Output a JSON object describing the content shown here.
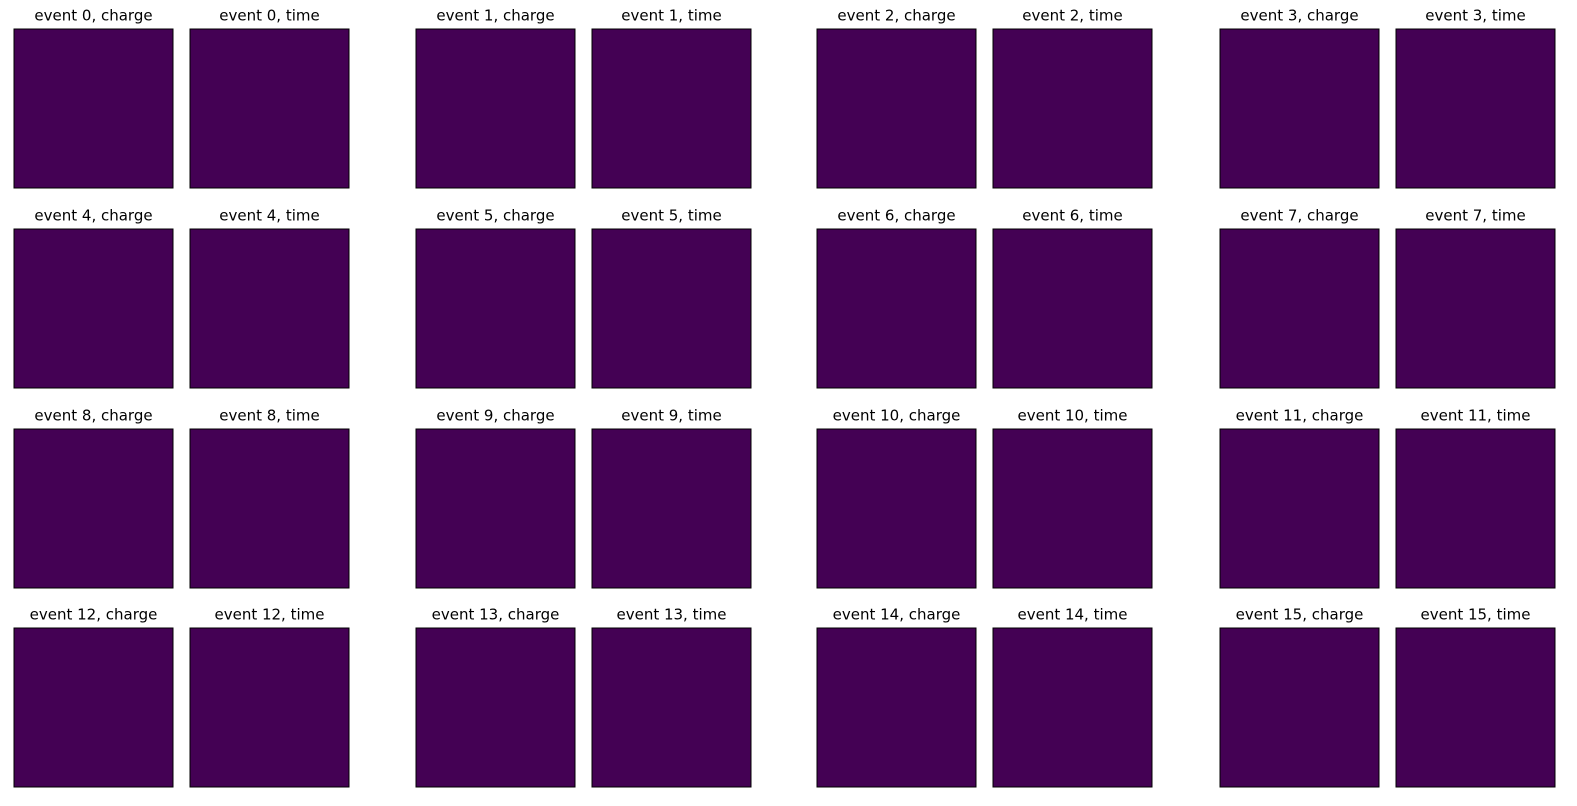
{
  "chart_data": [
    {
      "type": "image",
      "title": "event 0, charge"
    },
    {
      "type": "image",
      "title": "event 0, time"
    },
    {
      "type": "image",
      "title": "event 1, charge"
    },
    {
      "type": "image",
      "title": "event 1, time"
    },
    {
      "type": "image",
      "title": "event 2, charge"
    },
    {
      "type": "image",
      "title": "event 2, time"
    },
    {
      "type": "image",
      "title": "event 3, charge"
    },
    {
      "type": "image",
      "title": "event 3, time"
    },
    {
      "type": "image",
      "title": "event 4, charge"
    },
    {
      "type": "image",
      "title": "event 4, time"
    },
    {
      "type": "image",
      "title": "event 5, charge"
    },
    {
      "type": "image",
      "title": "event 5, time"
    },
    {
      "type": "image",
      "title": "event 6, charge"
    },
    {
      "type": "image",
      "title": "event 6, time"
    },
    {
      "type": "image",
      "title": "event 7, charge"
    },
    {
      "type": "image",
      "title": "event 7, time"
    },
    {
      "type": "image",
      "title": "event 8, charge"
    },
    {
      "type": "image",
      "title": "event 8, time"
    },
    {
      "type": "image",
      "title": "event 9, charge"
    },
    {
      "type": "image",
      "title": "event 9, time"
    },
    {
      "type": "image",
      "title": "event 10, charge"
    },
    {
      "type": "image",
      "title": "event 10, time"
    },
    {
      "type": "image",
      "title": "event 11, charge"
    },
    {
      "type": "image",
      "title": "event 11, time"
    },
    {
      "type": "image",
      "title": "event 12, charge"
    },
    {
      "type": "image",
      "title": "event 12, time"
    },
    {
      "type": "image",
      "title": "event 13, charge"
    },
    {
      "type": "image",
      "title": "event 13, time"
    },
    {
      "type": "image",
      "title": "event 14, charge"
    },
    {
      "type": "image",
      "title": "event 14, time"
    },
    {
      "type": "image",
      "title": "event 15, charge"
    },
    {
      "type": "image",
      "title": "event 15, time"
    }
  ]
}
